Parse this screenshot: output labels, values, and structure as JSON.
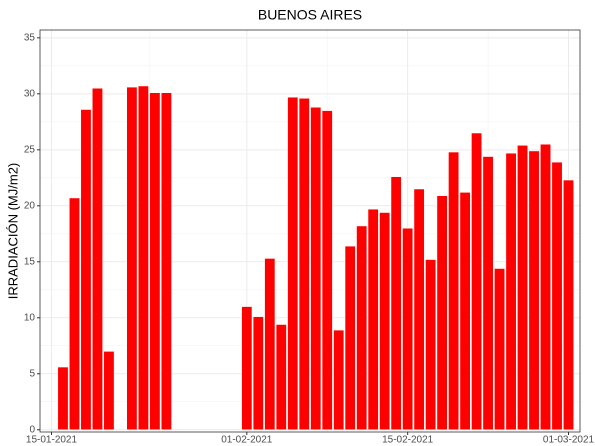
{
  "chart_data": {
    "type": "bar",
    "title": "BUENOS AIRES",
    "y_label": "IRRADIACIÓN (MJ/m2)",
    "x": [
      "16-01-2021",
      "17-01-2021",
      "18-01-2021",
      "19-01-2021",
      "20-01-2021",
      "22-01-2021",
      "23-01-2021",
      "24-01-2021",
      "25-01-2021",
      "01-02-2021",
      "02-02-2021",
      "03-02-2021",
      "04-02-2021",
      "05-02-2021",
      "06-02-2021",
      "07-02-2021",
      "08-02-2021",
      "09-02-2021",
      "10-02-2021",
      "11-02-2021",
      "12-02-2021",
      "13-02-2021",
      "14-02-2021",
      "15-02-2021",
      "16-02-2021",
      "17-02-2021",
      "18-02-2021",
      "19-02-2021",
      "20-02-2021",
      "21-02-2021",
      "22-02-2021",
      "23-02-2021",
      "24-02-2021",
      "25-02-2021",
      "26-02-2021",
      "27-02-2021",
      "28-02-2021",
      "01-03-2021"
    ],
    "values": [
      5.6,
      20.7,
      28.6,
      30.5,
      7.0,
      30.6,
      30.7,
      30.1,
      30.1,
      11.0,
      10.1,
      15.3,
      9.4,
      29.7,
      29.6,
      28.8,
      28.5,
      8.9,
      16.4,
      18.2,
      19.7,
      19.4,
      22.6,
      18.0,
      21.5,
      15.2,
      20.9,
      24.8,
      21.2,
      26.5,
      24.4,
      14.4,
      24.7,
      25.4,
      24.9,
      25.5,
      23.9,
      22.3
    ],
    "color": "#ff0000",
    "xlim": [
      "14-01-2021",
      "02-03-2021"
    ],
    "xticks": [
      "15-01-2021",
      "01-02-2021",
      "15-02-2021",
      "01-03-2021"
    ],
    "ylim": [
      -0.2,
      35.7
    ],
    "yticks": [
      0,
      5,
      10,
      15,
      20,
      25,
      30,
      35
    ],
    "grid": true
  }
}
